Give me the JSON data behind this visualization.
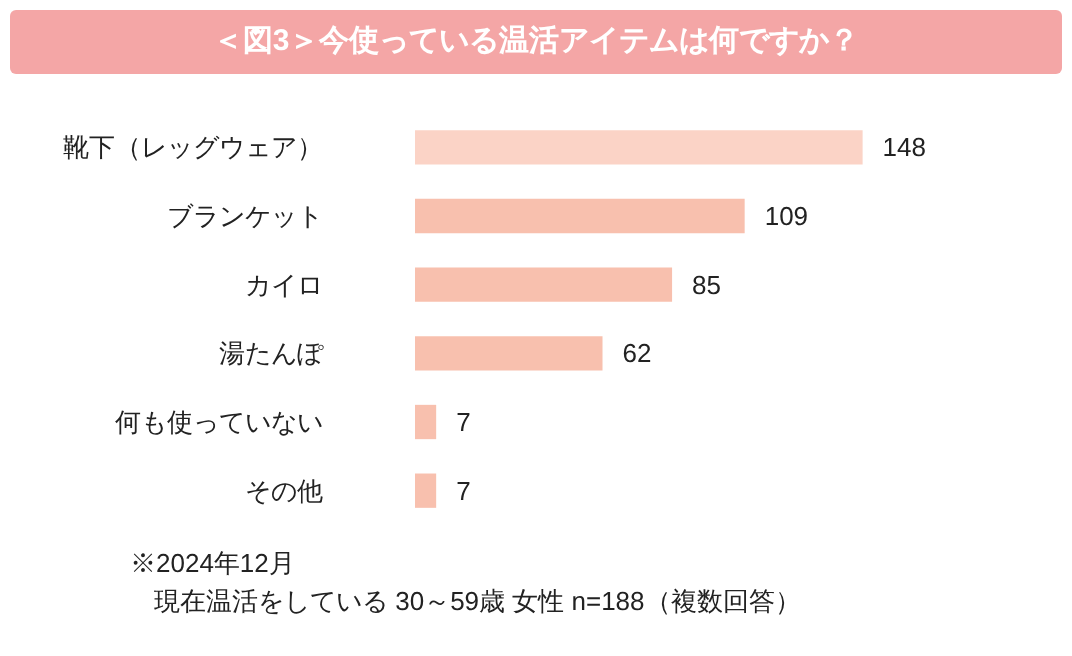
{
  "chart_data": {
    "type": "bar",
    "orientation": "horizontal",
    "title": "＜図3＞今使っている温活アイテムは何ですか？",
    "categories": [
      "靴下（レッグウェア）",
      "ブランケット",
      "カイロ",
      "湯たんぽ",
      "何も使っていない",
      "その他"
    ],
    "values": [
      148,
      109,
      85,
      62,
      7,
      7
    ],
    "colors": [
      "#fbd3c6",
      "#f8c0ae",
      "#f8c0ae",
      "#f8c0ae",
      "#f8c0ae",
      "#f8c0ae"
    ],
    "data_labels": true,
    "grid": false,
    "annotations": [
      "※2024年12月",
      "現在温活をしている 30～59歳 女性 n=188（複数回答）"
    ]
  }
}
